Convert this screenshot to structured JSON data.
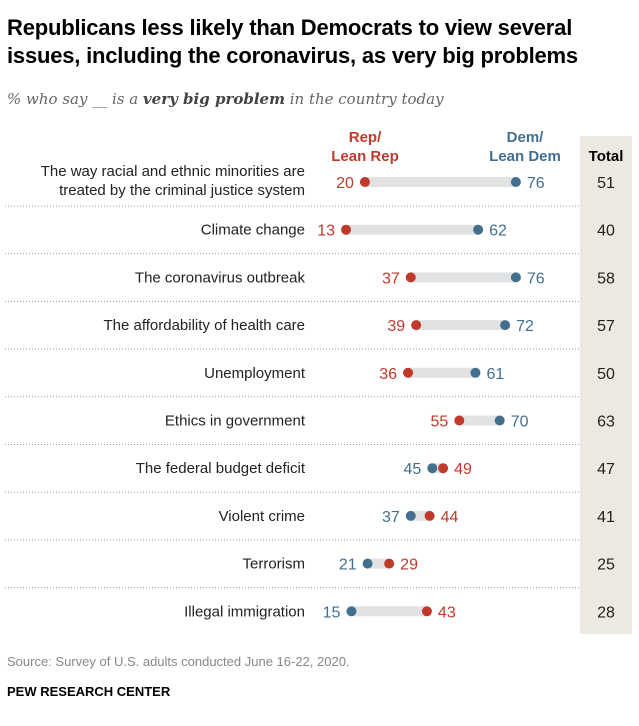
{
  "title": "Republicans less likely than Democrats to view several issues, including the coronavirus, as very big problems",
  "subtitle": {
    "pre": "% who say __ is a ",
    "bold": "very big problem",
    "post": " in the country today"
  },
  "footer": {
    "source": "Source: Survey of U.S. adults conducted June 16-22, 2020.",
    "brand": "PEW RESEARCH CENTER"
  },
  "chart_data": {
    "type": "dot",
    "column_headers": {
      "rep": [
        "Rep/",
        "Lean Rep"
      ],
      "dem": [
        "Dem/",
        "Lean Dem"
      ],
      "total": "Total"
    },
    "colors": {
      "rep": "#bf3a2b",
      "dem": "#436f8f",
      "bar": "#e2e2e2",
      "total_bg": "#ede9e0"
    },
    "xlim": [
      0,
      100
    ],
    "rows": [
      {
        "label": [
          "The way racial and ethnic minorities are",
          "treated by the criminal justice system"
        ],
        "rep": 20,
        "dem": 76,
        "total": 51
      },
      {
        "label": [
          "Climate change"
        ],
        "rep": 13,
        "dem": 62,
        "total": 40
      },
      {
        "label": [
          "The coronavirus outbreak"
        ],
        "rep": 37,
        "dem": 76,
        "total": 58
      },
      {
        "label": [
          "The affordability of health care"
        ],
        "rep": 39,
        "dem": 72,
        "total": 57
      },
      {
        "label": [
          "Unemployment"
        ],
        "rep": 36,
        "dem": 61,
        "total": 50
      },
      {
        "label": [
          "Ethics in government"
        ],
        "rep": 55,
        "dem": 70,
        "total": 63
      },
      {
        "label": [
          "The federal budget deficit"
        ],
        "rep": 49,
        "dem": 45,
        "total": 47
      },
      {
        "label": [
          "Violent crime"
        ],
        "rep": 44,
        "dem": 37,
        "total": 41
      },
      {
        "label": [
          "Terrorism"
        ],
        "rep": 29,
        "dem": 21,
        "total": 25
      },
      {
        "label": [
          "Illegal immigration"
        ],
        "rep": 43,
        "dem": 15,
        "total": 28
      }
    ]
  }
}
